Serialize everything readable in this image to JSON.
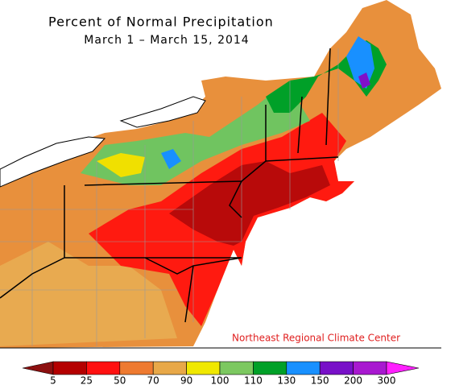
{
  "map": {
    "title": "Percent of Normal Precipitation",
    "subtitle": "March 1 – March 15, 2014",
    "credit": "Northeast Regional Climate Center"
  },
  "legend": {
    "ticks": [
      5,
      25,
      50,
      70,
      90,
      100,
      110,
      130,
      150,
      200,
      300
    ],
    "colors": [
      "#8c1010",
      "#b40000",
      "#ff1010",
      "#ee7a30",
      "#e8a848",
      "#f0e800",
      "#7cc860",
      "#00a028",
      "#1890ff",
      "#7810c8",
      "#a818d0",
      "#ff20ff"
    ]
  }
}
